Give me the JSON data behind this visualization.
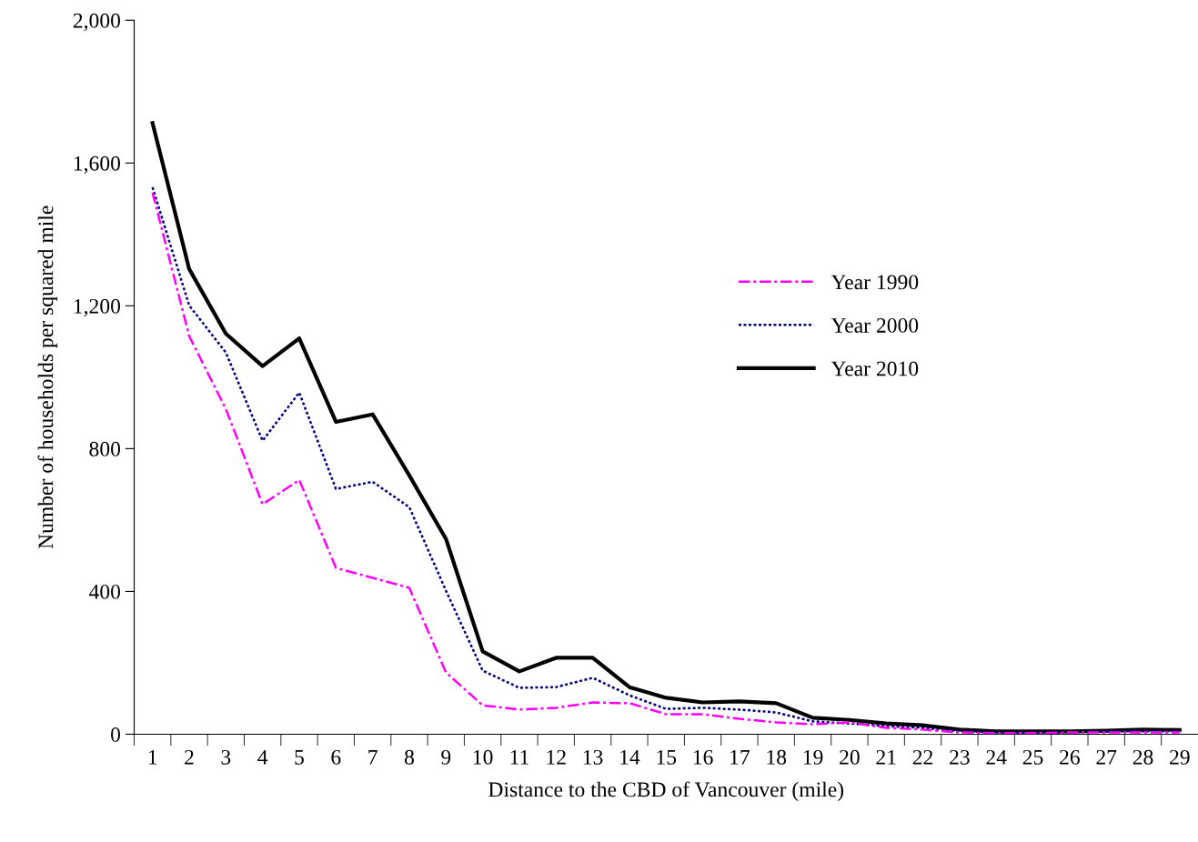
{
  "chart_data": {
    "type": "line",
    "xlabel": "Distance to the CBD of Vancouver (mile)",
    "ylabel": "Number of households per squared mile",
    "categories": [
      "1",
      "2",
      "3",
      "4",
      "5",
      "6",
      "7",
      "8",
      "9",
      "10",
      "11",
      "12",
      "13",
      "14",
      "15",
      "16",
      "17",
      "18",
      "19",
      "20",
      "21",
      "22",
      "23",
      "24",
      "25",
      "26",
      "27",
      "28",
      "29"
    ],
    "series": [
      {
        "name": "Year 1990",
        "color": "#ff00ff",
        "line_style": "dashdot",
        "values": [
          1517,
          1115,
          911,
          644,
          712,
          466,
          438,
          410,
          173,
          81,
          69,
          74,
          89,
          87,
          56,
          56,
          43,
          33,
          28,
          33,
          18,
          13,
          5,
          3,
          3,
          5,
          5,
          5,
          5
        ]
      },
      {
        "name": "Year 2000",
        "color": "#000080",
        "line_style": "dotted",
        "values": [
          1532,
          1201,
          1069,
          822,
          957,
          687,
          707,
          636,
          402,
          178,
          130,
          132,
          158,
          109,
          71,
          74,
          69,
          61,
          36,
          30,
          23,
          18,
          8,
          5,
          5,
          5,
          8,
          8,
          8
        ]
      },
      {
        "name": "Year 2010",
        "color": "#000000",
        "line_style": "solid",
        "values": [
          1712,
          1303,
          1122,
          1031,
          1109,
          875,
          896,
          725,
          547,
          232,
          176,
          214,
          214,
          132,
          102,
          89,
          92,
          87,
          46,
          40,
          30,
          25,
          13,
          8,
          8,
          8,
          10,
          13,
          12
        ]
      }
    ],
    "ylim": [
      0,
      2000
    ],
    "yticks": [
      0,
      {
        "value": 400,
        "label": "400"
      },
      {
        "value": 800,
        "label": "800"
      },
      {
        "value": 1200,
        "label": "1,200"
      },
      {
        "value": 1600,
        "label": "1,600"
      },
      {
        "value": 2000,
        "label": "2,000"
      }
    ],
    "grid": false,
    "legend": "right",
    "marker": "none"
  }
}
